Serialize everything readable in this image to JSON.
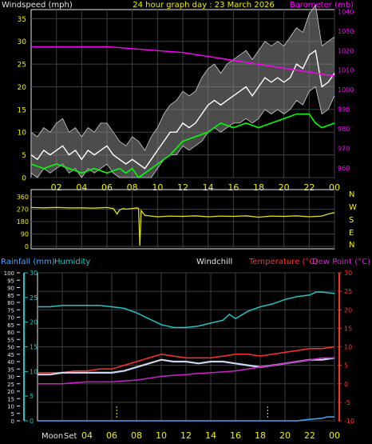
{
  "colors": {
    "background": "#000000",
    "grid": "#404040",
    "axis_white": "#e6e6e6",
    "title_yellow": "#f0f000",
    "windspeed_white": "#ffffff",
    "gust_green": "#00ff00",
    "barometer_magenta": "#ff00ff",
    "wind_direction_yellow": "#e0e020",
    "rainfall_blue": "#4aa3ff",
    "humidity_cyan": "#22c4c4",
    "temperature_red": "#ff3030",
    "dewpoint_magenta": "#d020d0",
    "windchill_lightblue": "#c8d8f0"
  },
  "chart_data": [
    {
      "type": "line",
      "name": "wind-barometer",
      "title": "24 hour graph day : 23 March 2026",
      "ylabel_left": "Windspeed (mph)",
      "ylabel_right": "Barometer (mb)",
      "x_ticks": [
        "02",
        "04",
        "06",
        "08",
        "10",
        "12",
        "14",
        "16",
        "18",
        "20",
        "22",
        "00"
      ],
      "x_range_hours": [
        0,
        24
      ],
      "ylim_left": [
        0,
        37
      ],
      "yticks_left": [
        0,
        5,
        10,
        15,
        20,
        25,
        30,
        35
      ],
      "ylim_right": [
        955,
        1041
      ],
      "yticks_right": [
        960,
        970,
        980,
        990,
        1000,
        1010,
        1020,
        1030,
        1040
      ],
      "series": [
        {
          "name": "Windspeed",
          "x": [
            0,
            0.5,
            1,
            1.5,
            2,
            2.5,
            3,
            3.5,
            4,
            4.5,
            5,
            5.5,
            6,
            6.5,
            7,
            7.5,
            8,
            8.5,
            9,
            9.5,
            10,
            10.5,
            11,
            11.5,
            12,
            12.5,
            13,
            13.5,
            14,
            14.5,
            15,
            15.5,
            16,
            16.5,
            17,
            17.5,
            18,
            18.5,
            19,
            19.5,
            20,
            20.5,
            21,
            21.5,
            22,
            22.5,
            23,
            23.5,
            24
          ],
          "y": [
            5,
            4,
            6,
            5,
            6,
            7,
            5,
            6,
            4,
            6,
            5,
            6,
            7,
            5,
            4,
            3,
            4,
            3,
            2,
            4,
            6,
            8,
            10,
            10,
            12,
            11,
            12,
            14,
            16,
            17,
            16,
            17,
            18,
            19,
            20,
            18,
            20,
            22,
            21,
            22,
            21,
            22,
            25,
            24,
            27,
            28,
            20,
            21,
            23
          ],
          "range_low": [
            1,
            0,
            2,
            1,
            2,
            3,
            1,
            2,
            0,
            2,
            1,
            2,
            3,
            1,
            0,
            0,
            0,
            0,
            0,
            0,
            2,
            4,
            5,
            5,
            7,
            6,
            7,
            8,
            10,
            11,
            10,
            11,
            12,
            12,
            13,
            12,
            13,
            15,
            14,
            15,
            14,
            15,
            17,
            16,
            19,
            20,
            14,
            15,
            18
          ],
          "range_high": [
            10,
            9,
            11,
            10,
            12,
            13,
            10,
            11,
            9,
            11,
            10,
            12,
            12,
            10,
            8,
            7,
            9,
            8,
            6,
            9,
            11,
            14,
            16,
            17,
            19,
            18,
            19,
            22,
            24,
            25,
            23,
            25,
            26,
            27,
            28,
            26,
            28,
            30,
            29,
            30,
            29,
            31,
            33,
            32,
            36,
            38,
            29,
            30,
            31
          ]
        },
        {
          "name": "Gust",
          "x": [
            0,
            1,
            2,
            3,
            4,
            5,
            6,
            7,
            7.5,
            8,
            8.5,
            9,
            10,
            11,
            12,
            13,
            14,
            15,
            16,
            17,
            18,
            19,
            20,
            21,
            22,
            22.5,
            23,
            24
          ],
          "y": [
            3,
            2,
            3,
            2,
            1,
            2,
            1,
            2,
            1,
            2,
            0,
            1,
            3,
            5,
            8,
            9,
            10,
            12,
            11,
            12,
            11,
            12,
            13,
            14,
            14,
            12,
            11,
            12
          ]
        },
        {
          "name": "Barometer",
          "x": [
            0,
            2,
            4,
            6,
            7,
            8,
            10,
            11,
            12,
            13,
            14,
            15,
            16,
            17,
            18,
            19,
            20,
            21,
            22,
            23,
            24
          ],
          "y": [
            1022,
            1022,
            1022,
            1022,
            1021.5,
            1021,
            1020,
            1019.5,
            1019,
            1018,
            1017,
            1016,
            1015,
            1014,
            1013,
            1012,
            1011,
            1010,
            1009,
            1008,
            1007
          ]
        }
      ]
    },
    {
      "type": "line",
      "name": "wind-direction",
      "ylim_left": [
        0,
        360
      ],
      "yticks_left": [
        0,
        90,
        180,
        270,
        360
      ],
      "compass_labels": [
        "N",
        "W",
        "S",
        "E",
        "N"
      ],
      "series": [
        {
          "name": "Wind direction",
          "x": [
            0,
            1,
            2,
            3,
            4,
            5,
            6,
            6.5,
            6.8,
            7,
            7.3,
            7.5,
            8,
            8.4,
            8.5,
            8.6,
            8.7,
            9,
            10,
            11,
            12,
            13,
            14,
            15,
            16,
            17,
            18,
            19,
            20,
            21,
            22,
            23,
            23.5,
            24
          ],
          "y": [
            282,
            280,
            283,
            279,
            280,
            278,
            282,
            275,
            235,
            265,
            275,
            270,
            275,
            280,
            275,
            5,
            260,
            225,
            215,
            220,
            218,
            222,
            215,
            220,
            218,
            222,
            212,
            220,
            218,
            222,
            215,
            220,
            235,
            245
          ]
        }
      ]
    },
    {
      "type": "line",
      "name": "temp-humidity",
      "ylabel_left": "Rainfall (mm)",
      "ylabel_left2": "Humidity",
      "ylabel_middle": "Windchill",
      "ylabel_right": "Temperature (°C)",
      "ylabel_right2": "Dew Point (°C)",
      "moon_labels": [
        "Moon",
        "Set"
      ],
      "ylim_humidity": [
        0,
        100
      ],
      "yticks_humidity": [
        0,
        5,
        10,
        15,
        20,
        25,
        30,
        35,
        40,
        45,
        50,
        55,
        60,
        65,
        70,
        75,
        80,
        85,
        90,
        95,
        100
      ],
      "ylim_rain": [
        0,
        30
      ],
      "yticks_rain": [
        0,
        5,
        10,
        15,
        20,
        25,
        30
      ],
      "ylim_temp": [
        -10,
        30
      ],
      "yticks_temp": [
        -10,
        -5,
        0,
        5,
        10,
        15,
        20,
        25,
        30
      ],
      "series": [
        {
          "name": "Humidity",
          "x": [
            0,
            1,
            2,
            3,
            4,
            5,
            6,
            7,
            8,
            9,
            10,
            11,
            12,
            13,
            14,
            15,
            15.5,
            16,
            17,
            18,
            19,
            20,
            21,
            22,
            22.5,
            23,
            24
          ],
          "y": [
            77,
            77,
            78,
            78,
            78,
            78,
            77,
            76,
            73,
            69,
            65,
            63,
            63,
            64,
            66,
            68,
            72,
            69,
            74,
            77,
            79,
            82,
            84,
            85,
            87,
            87,
            86
          ]
        },
        {
          "name": "Temperature",
          "x": [
            0,
            1,
            2,
            3,
            4,
            5,
            6,
            7,
            8,
            9,
            10,
            11,
            12,
            13,
            14,
            15,
            16,
            17,
            18,
            19,
            20,
            21,
            22,
            23,
            24
          ],
          "y": [
            3,
            3,
            3,
            3.5,
            3.5,
            4,
            4,
            5,
            6,
            7,
            8,
            7.5,
            7,
            7,
            7,
            7.5,
            8,
            8,
            7.5,
            8,
            8.5,
            9,
            9.5,
            9.5,
            10
          ]
        },
        {
          "name": "Windchill",
          "x": [
            0,
            1,
            2,
            3,
            4,
            5,
            6,
            7,
            8,
            9,
            10,
            11,
            12,
            13,
            14,
            15,
            16,
            17,
            18,
            19,
            20,
            21,
            22,
            23,
            24
          ],
          "y": [
            2.5,
            2.5,
            3,
            3,
            3,
            3,
            3,
            3.5,
            4.5,
            5.5,
            6.5,
            6,
            6,
            5.5,
            6,
            6,
            5.5,
            5,
            4.5,
            5,
            5.5,
            6,
            6.5,
            6.5,
            7
          ]
        },
        {
          "name": "Dew Point",
          "x": [
            0,
            1,
            2,
            3,
            4,
            5,
            6,
            7,
            8,
            9,
            10,
            11,
            12,
            13,
            14,
            15,
            16,
            17,
            18,
            19,
            20,
            21,
            22,
            23,
            24
          ],
          "y": [
            0,
            0,
            0,
            0.3,
            0.5,
            0.5,
            0.5,
            0.8,
            1,
            1.5,
            2,
            2.3,
            2.5,
            2.8,
            3,
            3.2,
            3.5,
            4,
            4.5,
            5,
            5.5,
            6,
            6.5,
            7,
            7
          ]
        },
        {
          "name": "Rainfall",
          "x": [
            0,
            21,
            22,
            23,
            23.4,
            24
          ],
          "y": [
            0,
            0,
            0.3,
            0.5,
            0.8,
            0.8
          ]
        }
      ],
      "moon_markers_hours": [
        6.4,
        18.6
      ]
    }
  ]
}
